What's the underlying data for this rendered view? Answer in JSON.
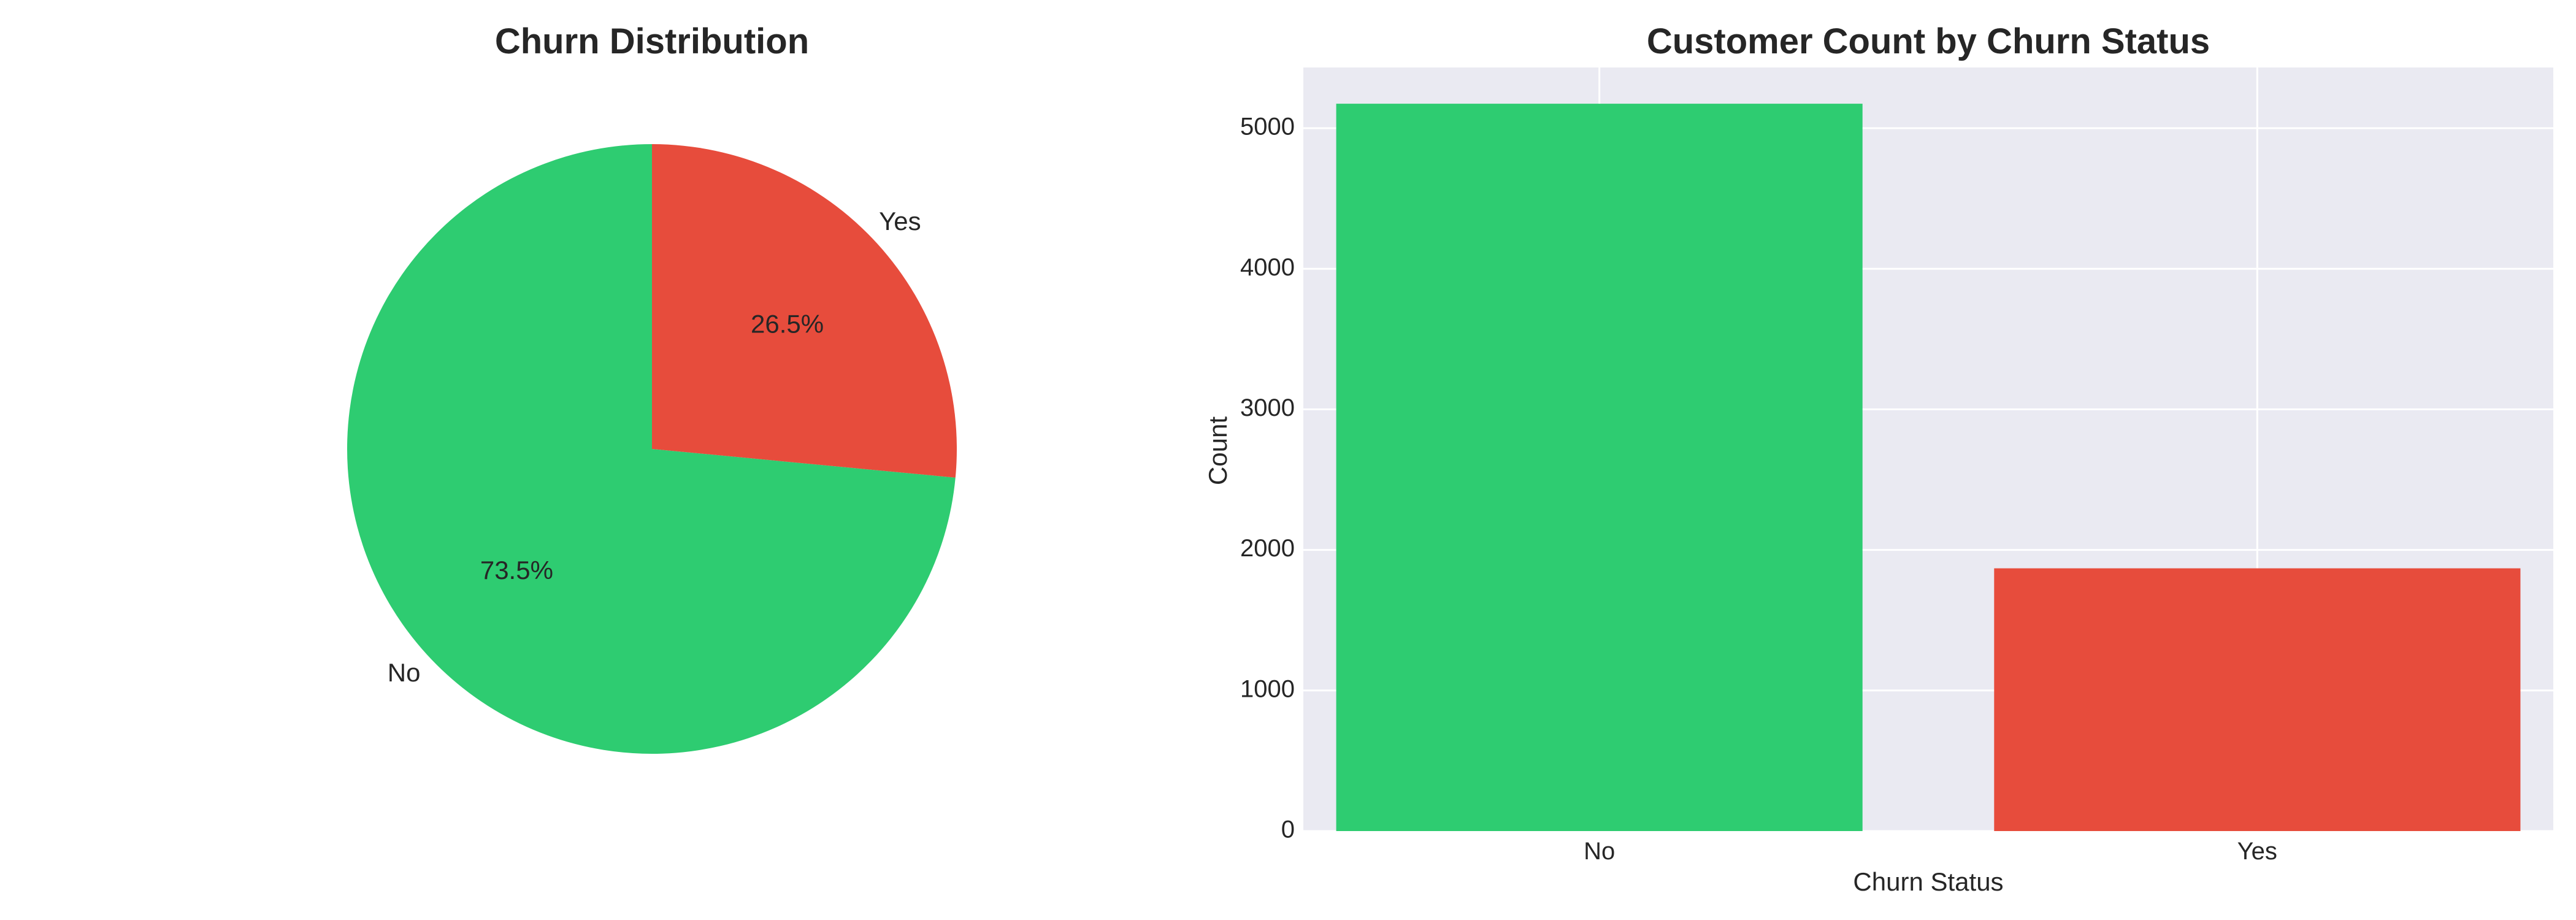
{
  "chart_data": [
    {
      "type": "pie",
      "title": "Churn Distribution",
      "categories": [
        "No",
        "Yes"
      ],
      "values": [
        73.5,
        26.5
      ],
      "percent_labels": [
        "73.5%",
        "26.5%"
      ],
      "colors": [
        "#2ecc71",
        "#e74c3c"
      ],
      "start_angle_deg": 90,
      "direction": "counterclockwise"
    },
    {
      "type": "bar",
      "title": "Customer Count by Churn Status",
      "categories": [
        "No",
        "Yes"
      ],
      "values": [
        5174,
        1869
      ],
      "colors": [
        "#2ecc71",
        "#e74c3c"
      ],
      "xlabel": "Churn Status",
      "ylabel": "Count",
      "ylim": [
        0,
        5432
      ],
      "yticks": [
        0,
        1000,
        2000,
        3000,
        4000,
        5000
      ],
      "grid": true,
      "background": "#eaeaf2"
    }
  ]
}
